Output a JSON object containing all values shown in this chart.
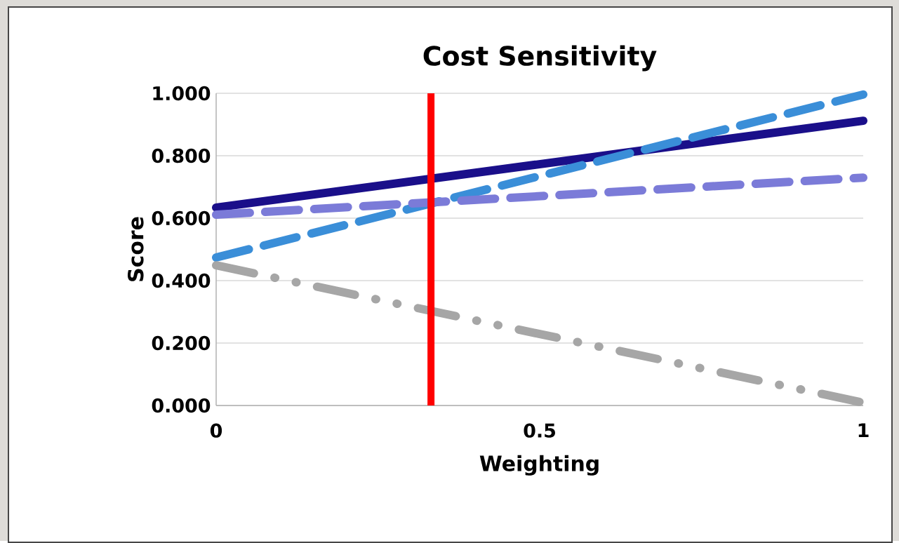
{
  "chart_data": {
    "type": "line",
    "title": "Cost Sensitivity",
    "xlabel": "Weighting",
    "ylabel": "Score",
    "x": [
      0,
      1
    ],
    "xlim": [
      0,
      1
    ],
    "ylim": [
      0,
      1
    ],
    "xticks": [
      0,
      0.5,
      1
    ],
    "yticks": [
      {
        "value": 0,
        "label": "0.000"
      },
      {
        "value": 0.2,
        "label": "0.200"
      },
      {
        "value": 0.4,
        "label": "0.400"
      },
      {
        "value": 0.6,
        "label": "0.600"
      },
      {
        "value": 0.8,
        "label": "0.800"
      },
      {
        "value": 1,
        "label": "1.000"
      }
    ],
    "grid": "y",
    "marker": "none",
    "series": [
      {
        "color": "#1a0f8a",
        "values": [
          0.634,
          0.912
        ],
        "line_style": "solid"
      },
      {
        "color": "#3a8ed8",
        "values": [
          0.474,
          0.996
        ],
        "line_style": "dashed"
      },
      {
        "color": "#7b7bd8",
        "values": [
          0.611,
          0.73
        ],
        "line_style": "dashed"
      },
      {
        "color": "#a6a6a6",
        "values": [
          0.449,
          0.009
        ],
        "line_style": "dashdot"
      }
    ],
    "ref_lines": [
      {
        "axis": "x",
        "value": 0.332,
        "color": "#ff0000"
      }
    ]
  }
}
